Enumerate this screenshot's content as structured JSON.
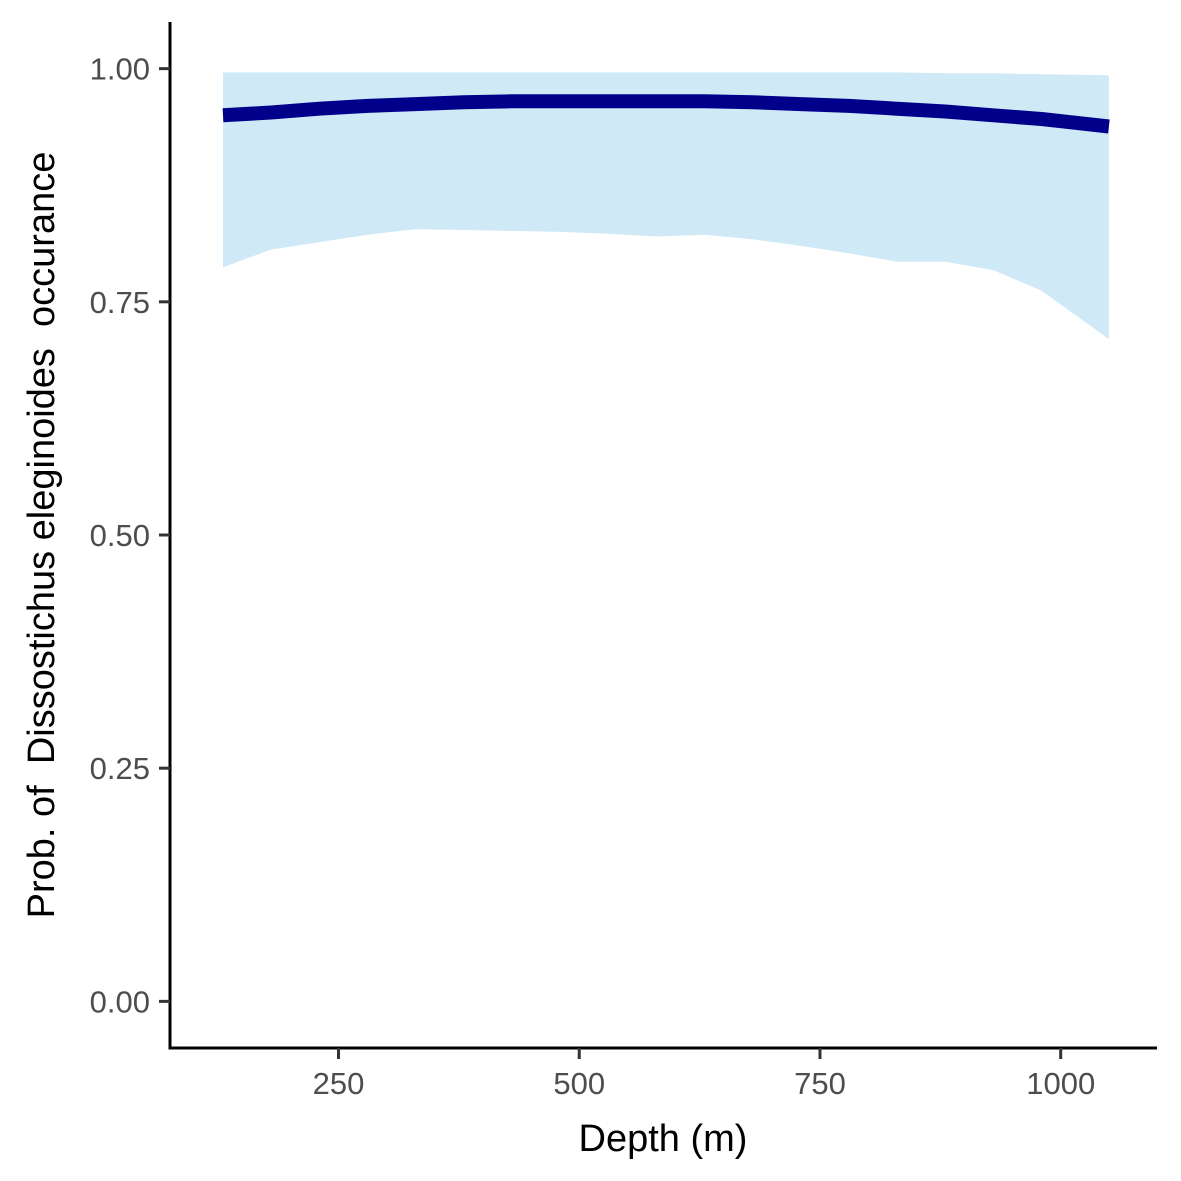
{
  "chart_data": {
    "type": "line",
    "title": "",
    "xlabel": "Depth (m)",
    "ylabel": "Prob. of  Dissostichus eleginoides  occurance",
    "xlim": [
      75,
      1100
    ],
    "ylim": [
      -0.05,
      1.05
    ],
    "x_ticks": [
      250,
      500,
      750,
      1000
    ],
    "x_tick_labels": [
      "250",
      "500",
      "750",
      "1000"
    ],
    "y_ticks": [
      0.0,
      0.25,
      0.5,
      0.75,
      1.0
    ],
    "y_tick_labels": [
      "0.00",
      "0.25",
      "0.50",
      "0.75",
      "1.00"
    ],
    "grid": false,
    "legend": "none",
    "series": [
      {
        "x": [
          130,
          180,
          230,
          280,
          330,
          380,
          430,
          480,
          530,
          580,
          630,
          680,
          730,
          780,
          830,
          880,
          930,
          980,
          1050
        ],
        "y": [
          0.95,
          0.953,
          0.957,
          0.96,
          0.962,
          0.964,
          0.965,
          0.965,
          0.965,
          0.965,
          0.965,
          0.964,
          0.962,
          0.96,
          0.957,
          0.954,
          0.95,
          0.946,
          0.938
        ],
        "lower": [
          0.787,
          0.806,
          0.814,
          0.822,
          0.828,
          0.827,
          0.826,
          0.825,
          0.823,
          0.82,
          0.822,
          0.817,
          0.81,
          0.802,
          0.793,
          0.793,
          0.784,
          0.762,
          0.71
        ],
        "upper": [
          0.996,
          0.996,
          0.996,
          0.996,
          0.996,
          0.996,
          0.996,
          0.996,
          0.996,
          0.996,
          0.996,
          0.996,
          0.996,
          0.996,
          0.996,
          0.995,
          0.995,
          0.994,
          0.993
        ]
      }
    ],
    "colors": {
      "line": "#00008b",
      "ribbon": "#cfe9f6",
      "axis": "#000000",
      "tick_label": "#4d4d4d"
    }
  }
}
